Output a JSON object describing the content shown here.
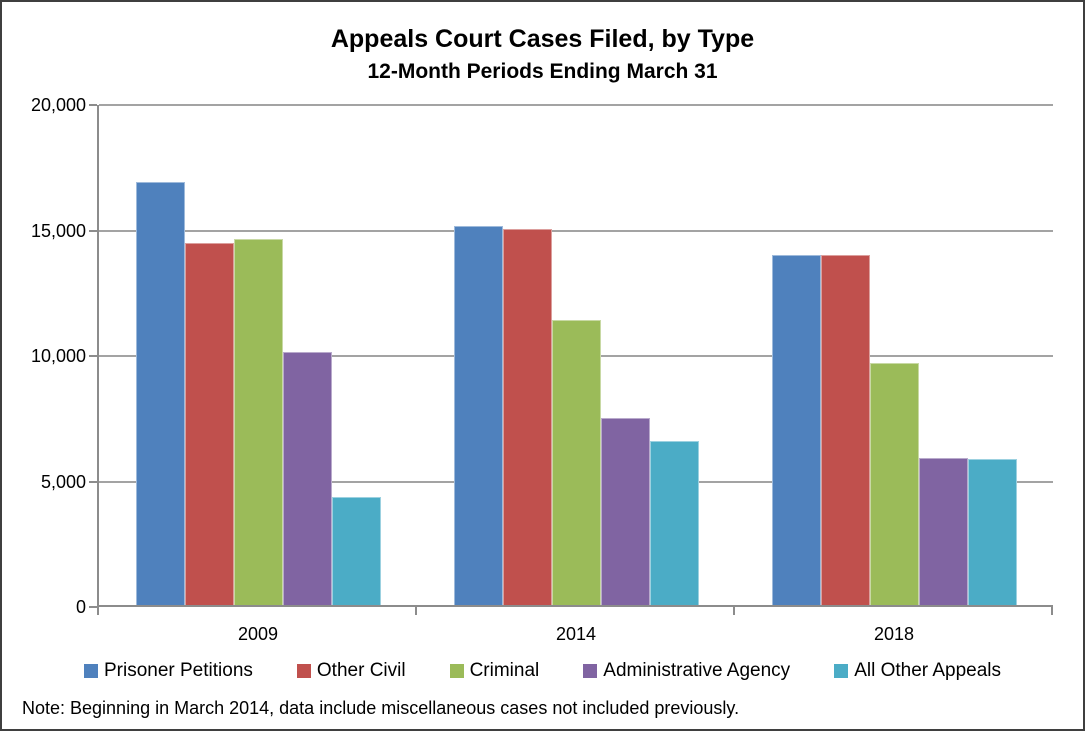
{
  "chart_data": {
    "type": "bar",
    "title": "Appeals Court Cases Filed, by Type",
    "subtitle": "12-Month Periods Ending March 31",
    "categories": [
      "2009",
      "2014",
      "2018"
    ],
    "series": [
      {
        "name": "Prisoner Petitions",
        "color": "#4F81BD",
        "values": [
          16870,
          15090,
          13950
        ]
      },
      {
        "name": "Other Civil",
        "color": "#C0504D",
        "values": [
          14440,
          15000,
          13950
        ]
      },
      {
        "name": "Criminal",
        "color": "#9BBB59",
        "values": [
          14570,
          11370,
          9630
        ]
      },
      {
        "name": "Administrative Agency",
        "color": "#8064A2",
        "values": [
          10080,
          7470,
          5840
        ]
      },
      {
        "name": "All Other Appeals",
        "color": "#4BACC6",
        "values": [
          4290,
          6530,
          5800
        ]
      }
    ],
    "ylim": [
      0,
      20000
    ],
    "yticks": [
      {
        "value": 0,
        "label": "0"
      },
      {
        "value": 5000,
        "label": "5,000"
      },
      {
        "value": 10000,
        "label": "10,000"
      },
      {
        "value": 15000,
        "label": "15,000"
      },
      {
        "value": 20000,
        "label": "20,000"
      }
    ],
    "grid": "horizontal",
    "legend_position": "bottom",
    "note": "Note: Beginning in March 2014, data include miscellaneous cases not included previously.",
    "axis_color": "#8c8c8c",
    "gridline_color": "#a3a3a3"
  }
}
